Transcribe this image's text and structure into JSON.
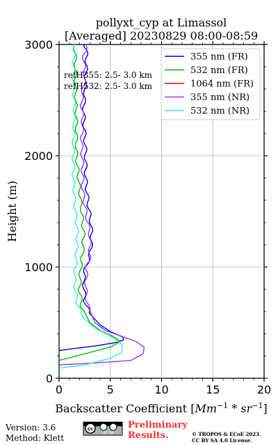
{
  "chart_data": {
    "type": "line",
    "title_line1": "pollyxt_cyp at Limassol",
    "title_line2": "[Averaged] 20230829 08:00-08:59",
    "xlabel_text": "Backscatter Coefficient",
    "xlabel_unit_base": "Mm",
    "xlabel_unit_exp1": "−1",
    "xlabel_unit_mid": " * sr",
    "xlabel_unit_exp2": "−1",
    "ylabel": "Height (m)",
    "xlim": [
      0,
      20
    ],
    "ylim": [
      0,
      3000
    ],
    "xticks": [
      "0",
      "5",
      "10",
      "15",
      "20"
    ],
    "yticks": [
      "0",
      "1000",
      "2000",
      "3000"
    ],
    "grid": true,
    "legend_position": "top-right",
    "annotations": [
      "refH355:  2.5- 3.0 km",
      "refH532:  2.5- 3.0 km"
    ],
    "series": [
      {
        "name": "355 nm (FR)",
        "color": "#0000dd",
        "points": [
          [
            0,
            250
          ],
          [
            3.5,
            290
          ],
          [
            5.5,
            320
          ],
          [
            6.3,
            345
          ],
          [
            6.2,
            370
          ],
          [
            5,
            420
          ],
          [
            4,
            480
          ],
          [
            3,
            580
          ],
          [
            2.5,
            700
          ],
          [
            2.4,
            900
          ],
          [
            2.6,
            1000
          ],
          [
            3,
            1100
          ],
          [
            3.2,
            1250
          ],
          [
            3.1,
            1400
          ],
          [
            2.8,
            1600
          ],
          [
            2.6,
            1800
          ],
          [
            2.6,
            2000
          ],
          [
            2.5,
            2200
          ],
          [
            2.4,
            2400
          ],
          [
            2.6,
            2700
          ],
          [
            2.7,
            2900
          ],
          [
            2.5,
            3000
          ]
        ]
      },
      {
        "name": "532 nm (FR)",
        "color": "#00bb00",
        "points": [
          [
            0,
            160
          ],
          [
            2.5,
            220
          ],
          [
            5,
            280
          ],
          [
            6,
            330
          ],
          [
            5.2,
            380
          ],
          [
            4,
            430
          ],
          [
            3,
            500
          ],
          [
            2.2,
            650
          ],
          [
            2,
            800
          ],
          [
            2.1,
            1000
          ],
          [
            2.3,
            1100
          ],
          [
            2.4,
            1300
          ],
          [
            2.2,
            1500
          ],
          [
            1.9,
            1800
          ],
          [
            1.7,
            2000
          ],
          [
            1.7,
            2300
          ],
          [
            1.6,
            2600
          ],
          [
            1.6,
            2900
          ],
          [
            1.5,
            3000
          ]
        ]
      },
      {
        "name": "1064 nm (FR)",
        "color": "#dd0000",
        "points": []
      },
      {
        "name": "355 nm (NR)",
        "color": "#9933ff",
        "points": [
          [
            0,
            120
          ],
          [
            4,
            140
          ],
          [
            7,
            160
          ],
          [
            8.2,
            220
          ],
          [
            8.3,
            280
          ],
          [
            7.5,
            330
          ],
          [
            6,
            380
          ],
          [
            4.5,
            430
          ],
          [
            3.5,
            500
          ],
          [
            2.8,
            650
          ],
          [
            2.6,
            800
          ],
          [
            2.7,
            1000
          ],
          [
            3,
            1100
          ],
          [
            3,
            1300
          ],
          [
            2.6,
            1500
          ],
          [
            2.3,
            1700
          ],
          [
            2.3,
            1900
          ],
          [
            2.2,
            2100
          ],
          [
            2.3,
            2300
          ],
          [
            2.2,
            2500
          ],
          [
            2.5,
            2700
          ],
          [
            2.4,
            2900
          ],
          [
            2.7,
            3000
          ]
        ]
      },
      {
        "name": "532 nm (NR)",
        "color": "#33eecc",
        "points": [
          [
            0,
            90
          ],
          [
            2.5,
            120
          ],
          [
            5,
            180
          ],
          [
            6.1,
            230
          ],
          [
            6.2,
            300
          ],
          [
            5,
            380
          ],
          [
            3.5,
            450
          ],
          [
            2.3,
            550
          ],
          [
            1.7,
            700
          ],
          [
            1.5,
            900
          ],
          [
            1.7,
            1100
          ],
          [
            1.8,
            1300
          ],
          [
            1.6,
            1500
          ],
          [
            1.4,
            1800
          ],
          [
            1.4,
            2100
          ],
          [
            1.5,
            2400
          ],
          [
            1.4,
            2700
          ],
          [
            1.5,
            3000
          ]
        ]
      }
    ]
  },
  "footer": {
    "version": "Version: 3.6",
    "method": "Method: Klett",
    "license_badge_text": "BY  SA",
    "preliminary_line1": "Preliminary",
    "preliminary_line2": "Results.",
    "copyright_line1": "© TROPOS & ECoE 2023.",
    "copyright_line2": "CC BY SA 4.0 License."
  }
}
